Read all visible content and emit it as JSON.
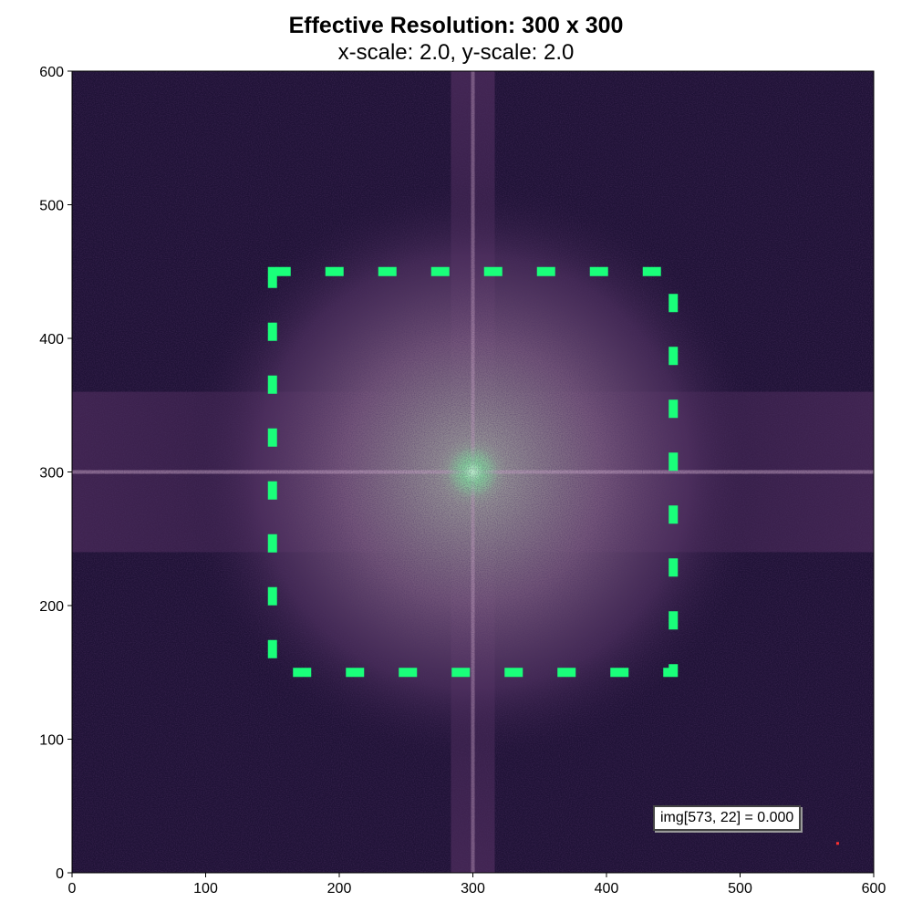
{
  "chart_data": {
    "type": "heatmap",
    "title": "Effective Resolution: 300 x 300",
    "subtitle": "x-scale: 2.0, y-scale: 2.0",
    "xlabel": "",
    "ylabel": "",
    "xlim": [
      0,
      600
    ],
    "ylim": [
      0,
      600
    ],
    "xticks": [
      0,
      100,
      200,
      300,
      400,
      500,
      600
    ],
    "yticks": [
      0,
      100,
      200,
      300,
      400,
      500,
      600
    ],
    "xtick_labels": [
      "0",
      "100",
      "200",
      "300",
      "400",
      "500",
      "600"
    ],
    "ytick_labels": [
      "0",
      "100",
      "200",
      "300",
      "400",
      "500",
      "600"
    ],
    "image_size": [
      600,
      600
    ],
    "center": [
      300,
      300
    ],
    "colormap": [
      "#1c1030",
      "#3b1e4e",
      "#5a3266",
      "#8a6288",
      "#b3939f",
      "#a9c8aa",
      "#7ee8a0"
    ],
    "grid": false,
    "overlay_rectangle": {
      "x": [
        150,
        450
      ],
      "y": [
        150,
        450
      ],
      "style": "dashed",
      "color": "#1aff7a"
    },
    "cursor": {
      "x": 573,
      "y": 22,
      "color": "#ff3030",
      "readout": "img[573, 22] = 0.000"
    }
  }
}
